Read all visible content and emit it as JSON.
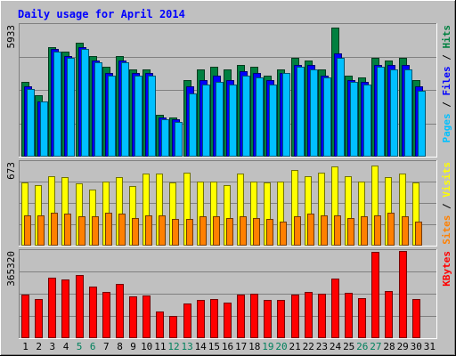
{
  "chart_data": [
    {
      "type": "bar",
      "panel": "hits-files-pages",
      "title": "Daily usage for April 2014",
      "ymax_label": "5933",
      "ylim": [
        0,
        5933
      ],
      "right_label": {
        "pages": "Pages",
        "files": "Files",
        "hits": "Hits",
        "sep": " / "
      },
      "categories": [
        "1",
        "2",
        "3",
        "4",
        "5",
        "6",
        "7",
        "8",
        "9",
        "10",
        "11",
        "12",
        "13",
        "14",
        "15",
        "16",
        "17",
        "18",
        "19",
        "20",
        "21",
        "22",
        "23",
        "24",
        "25",
        "26",
        "27",
        "28",
        "29",
        "30",
        "31"
      ],
      "series": [
        {
          "name": "Hits",
          "color": "#008040",
          "values": [
            3400,
            2800,
            5000,
            4800,
            5200,
            4600,
            4100,
            4600,
            4000,
            4000,
            1900,
            1800,
            3500,
            4000,
            4100,
            4000,
            4200,
            4100,
            3700,
            4000,
            4500,
            4400,
            4000,
            5900,
            3700,
            3600,
            4500,
            4400,
            4500,
            3500,
            0
          ]
        },
        {
          "name": "Files",
          "color": "#0000ff",
          "values": [
            3200,
            2500,
            4900,
            4600,
            5000,
            4400,
            3800,
            4400,
            3800,
            3800,
            1800,
            1700,
            3200,
            3500,
            3700,
            3500,
            3900,
            3800,
            3500,
            3800,
            4200,
            4200,
            3700,
            4700,
            3500,
            3400,
            4200,
            4200,
            4200,
            3200,
            0
          ]
        },
        {
          "name": "Pages",
          "color": "#00c0ff",
          "values": [
            3100,
            2500,
            4800,
            4500,
            4900,
            4300,
            3700,
            4300,
            3700,
            3700,
            1700,
            1600,
            2900,
            3300,
            3400,
            3300,
            3700,
            3600,
            3300,
            3800,
            4100,
            4000,
            3600,
            4500,
            3400,
            3300,
            4100,
            4000,
            4000,
            3000,
            0
          ]
        }
      ]
    },
    {
      "type": "bar",
      "panel": "visits-sites",
      "ymax_label": "673",
      "ylim": [
        0,
        673
      ],
      "right_label": {
        "sites": "Sites",
        "visits": "Visits",
        "sep": " / "
      },
      "categories": [
        "1",
        "2",
        "3",
        "4",
        "5",
        "6",
        "7",
        "8",
        "9",
        "10",
        "11",
        "12",
        "13",
        "14",
        "15",
        "16",
        "17",
        "18",
        "19",
        "20",
        "21",
        "22",
        "23",
        "24",
        "25",
        "26",
        "27",
        "28",
        "29",
        "30",
        "31"
      ],
      "series": [
        {
          "name": "Visits",
          "color": "#ffff00",
          "values": [
            520,
            500,
            570,
            560,
            510,
            460,
            530,
            560,
            490,
            590,
            590,
            520,
            600,
            530,
            530,
            500,
            590,
            530,
            520,
            530,
            620,
            570,
            600,
            650,
            570,
            530,
            660,
            560,
            590,
            520,
            0
          ]
        },
        {
          "name": "Sites",
          "color": "#ff8000",
          "values": [
            250,
            250,
            270,
            260,
            240,
            240,
            270,
            260,
            230,
            250,
            250,
            220,
            220,
            240,
            240,
            230,
            240,
            230,
            220,
            200,
            240,
            260,
            250,
            250,
            230,
            240,
            250,
            270,
            240,
            200,
            0
          ]
        }
      ]
    },
    {
      "type": "bar",
      "panel": "kbytes",
      "ymax_label": "365320",
      "ylim": [
        0,
        365320
      ],
      "right_label": {
        "kbytes": "KBytes"
      },
      "categories": [
        "1",
        "2",
        "3",
        "4",
        "5",
        "6",
        "7",
        "8",
        "9",
        "10",
        "11",
        "12",
        "13",
        "14",
        "15",
        "16",
        "17",
        "18",
        "19",
        "20",
        "21",
        "22",
        "23",
        "24",
        "25",
        "26",
        "27",
        "28",
        "29",
        "30",
        "31"
      ],
      "series": [
        {
          "name": "KBytes",
          "color": "#ff0000",
          "values": [
            188000,
            167000,
            260000,
            253000,
            270000,
            222000,
            198000,
            231000,
            178000,
            183000,
            115000,
            95000,
            148000,
            162000,
            167000,
            153000,
            188000,
            189000,
            163000,
            165000,
            188000,
            197000,
            190000,
            255000,
            193000,
            170000,
            370000,
            202000,
            375000,
            168000,
            0
          ]
        }
      ]
    }
  ],
  "day_labels": [
    {
      "text": "1",
      "color": "#000000"
    },
    {
      "text": "2",
      "color": "#000000"
    },
    {
      "text": "3",
      "color": "#000000"
    },
    {
      "text": "4",
      "color": "#000000"
    },
    {
      "text": "5",
      "color": "#00805c"
    },
    {
      "text": "6",
      "color": "#00805c"
    },
    {
      "text": "7",
      "color": "#000000"
    },
    {
      "text": "8",
      "color": "#000000"
    },
    {
      "text": "9",
      "color": "#000000"
    },
    {
      "text": "10",
      "color": "#000000"
    },
    {
      "text": "11",
      "color": "#000000"
    },
    {
      "text": "12",
      "color": "#00805c"
    },
    {
      "text": "13",
      "color": "#00805c"
    },
    {
      "text": "14",
      "color": "#000000"
    },
    {
      "text": "15",
      "color": "#000000"
    },
    {
      "text": "16",
      "color": "#000000"
    },
    {
      "text": "17",
      "color": "#000000"
    },
    {
      "text": "18",
      "color": "#000000"
    },
    {
      "text": "19",
      "color": "#00805c"
    },
    {
      "text": "20",
      "color": "#00805c"
    },
    {
      "text": "21",
      "color": "#000000"
    },
    {
      "text": "22",
      "color": "#000000"
    },
    {
      "text": "23",
      "color": "#000000"
    },
    {
      "text": "24",
      "color": "#000000"
    },
    {
      "text": "25",
      "color": "#000000"
    },
    {
      "text": "26",
      "color": "#00805c"
    },
    {
      "text": "27",
      "color": "#00805c"
    },
    {
      "text": "28",
      "color": "#000000"
    },
    {
      "text": "29",
      "color": "#000000"
    },
    {
      "text": "30",
      "color": "#000000"
    },
    {
      "text": "31",
      "color": "#000000"
    }
  ],
  "colors": {
    "background": "#c0c0c0",
    "title": "#0000ff",
    "frame_dark": "#808080",
    "frame_light": "#ffffff",
    "gridline": "#808080"
  }
}
